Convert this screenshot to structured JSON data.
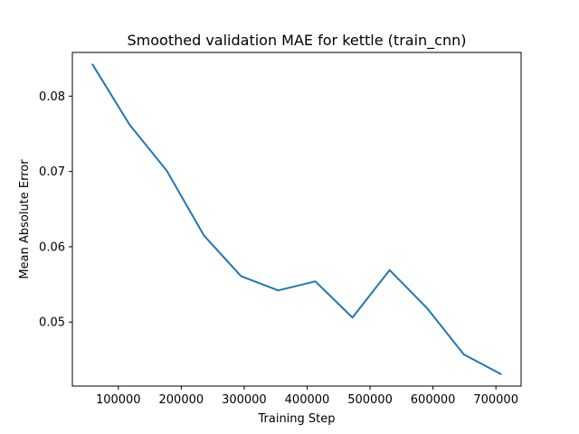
{
  "chart_data": {
    "type": "line",
    "title": "Smoothed validation MAE for kettle (train_cnn)",
    "xlabel": "Training Step",
    "ylabel": "Mean Absolute Error",
    "xlim": [
      27000,
      740000
    ],
    "ylim": [
      0.0415,
      0.0858
    ],
    "xticks": [
      100000,
      200000,
      300000,
      400000,
      500000,
      600000,
      700000
    ],
    "xtick_labels": [
      "100000",
      "200000",
      "300000",
      "400000",
      "500000",
      "600000",
      "700000"
    ],
    "yticks": [
      0.05,
      0.06,
      0.07,
      0.08
    ],
    "ytick_labels": [
      "0.05",
      "0.06",
      "0.07",
      "0.08"
    ],
    "grid": false,
    "series": [
      {
        "color": "#1f77b4",
        "x": [
          59000,
          118000,
          177000,
          236000,
          295000,
          354000,
          413000,
          472000,
          531000,
          590000,
          649000,
          708000
        ],
        "y": [
          0.0842,
          0.0762,
          0.0701,
          0.0615,
          0.0561,
          0.0542,
          0.0554,
          0.0506,
          0.0569,
          0.0519,
          0.0457,
          0.0431
        ]
      }
    ]
  }
}
